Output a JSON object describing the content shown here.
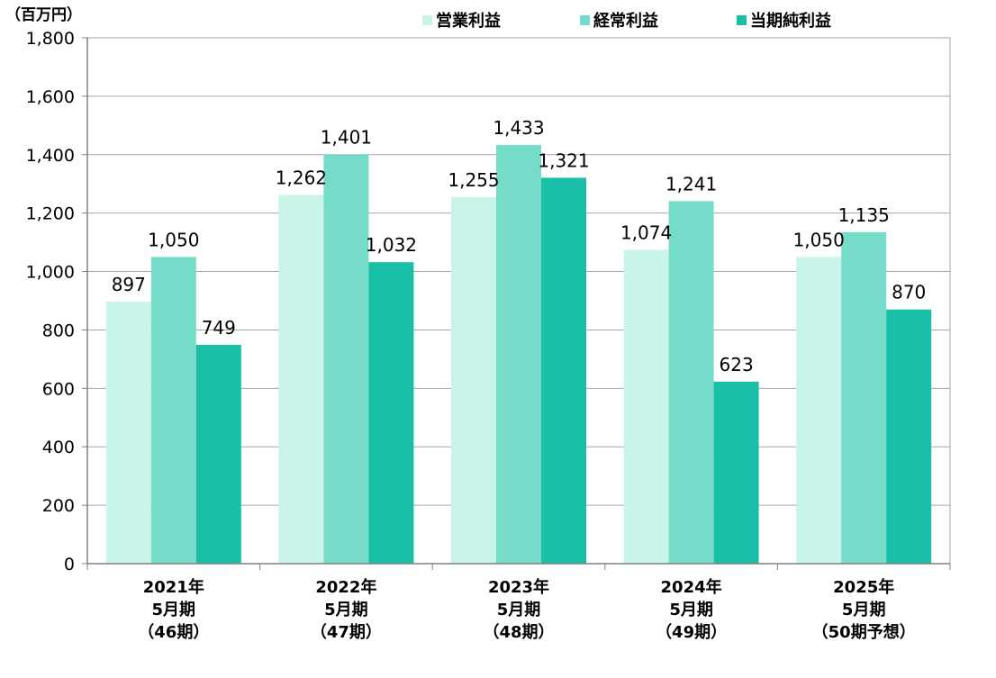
{
  "chart_data": {
    "type": "bar",
    "unit_label": "（百万円）",
    "categories": [
      [
        "2021年",
        "5月期",
        "（46期）"
      ],
      [
        "2022年",
        "5月期",
        "（47期）"
      ],
      [
        "2023年",
        "5月期",
        "（48期）"
      ],
      [
        "2024年",
        "5月期",
        "（49期）"
      ],
      [
        "2025年",
        "5月期",
        "（50期予想）"
      ]
    ],
    "series": [
      {
        "name": "営業利益",
        "color": "#c8f4ea",
        "values": [
          897,
          1262,
          1255,
          1074,
          1050
        ],
        "labels": [
          "897",
          "1,262",
          "1,255",
          "1,074",
          "1,050"
        ]
      },
      {
        "name": "経常利益",
        "color": "#74dcc9",
        "values": [
          1050,
          1401,
          1433,
          1241,
          1135
        ],
        "labels": [
          "1,050",
          "1,401",
          "1,433",
          "1,241",
          "1,135"
        ]
      },
      {
        "name": "当期純利益",
        "color": "#18bfa6",
        "values": [
          749,
          1032,
          1321,
          623,
          870
        ],
        "labels": [
          "749",
          "1,032",
          "1,321",
          "623",
          "870"
        ]
      }
    ],
    "ylim": [
      0,
      1800
    ],
    "yticks": [
      0,
      200,
      400,
      600,
      800,
      1000,
      1200,
      1400,
      1600,
      1800
    ],
    "ytick_labels": [
      "0",
      "200",
      "400",
      "600",
      "800",
      "1,000",
      "1,200",
      "1,400",
      "1,600",
      "1,800"
    ],
    "grid": true,
    "legend_position": "top"
  }
}
